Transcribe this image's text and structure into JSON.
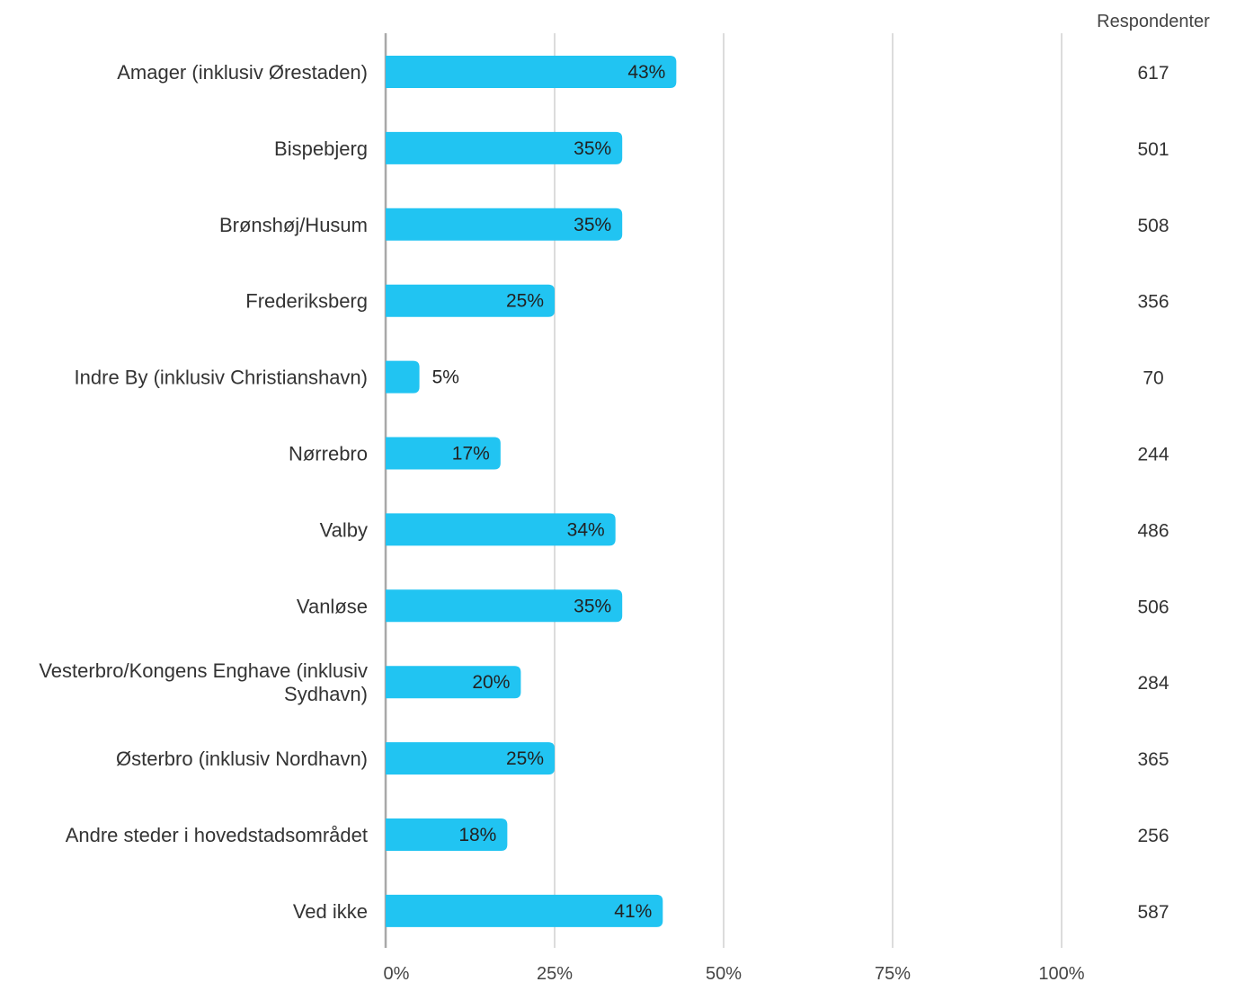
{
  "chart_data": {
    "type": "bar",
    "orientation": "horizontal",
    "categories": [
      "Amager (inklusiv Ørestaden)",
      "Bispebjerg",
      "Brønshøj/Husum",
      "Frederiksberg",
      "Indre By (inklusiv Christianshavn)",
      "Nørrebro",
      "Valby",
      "Vanløse",
      "Vesterbro/Kongens Enghave (inklusiv Sydhavn)",
      "Østerbro (inklusiv Nordhavn)",
      "Andre steder i hovedstadsområdet",
      "Ved ikke"
    ],
    "values": [
      43,
      35,
      35,
      25,
      5,
      17,
      34,
      35,
      20,
      25,
      18,
      41
    ],
    "value_labels": [
      "43%",
      "35%",
      "35%",
      "25%",
      "5%",
      "17%",
      "34%",
      "35%",
      "20%",
      "25%",
      "18%",
      "41%"
    ],
    "xlim": [
      0,
      100
    ],
    "x_ticks": [
      0,
      25,
      50,
      75,
      100
    ],
    "x_tick_labels": [
      "0%",
      "25%",
      "50%",
      "75%",
      "100%"
    ],
    "grid": true,
    "respondents_header": "Respondenter",
    "respondents": [
      "617",
      "501",
      "508",
      "356",
      "70",
      "244",
      "486",
      "506",
      "284",
      "365",
      "256",
      "587"
    ],
    "colors": {
      "bar": "#21C4F2",
      "grid": "#b8b8b8",
      "axis": "#a8a8a8"
    }
  }
}
